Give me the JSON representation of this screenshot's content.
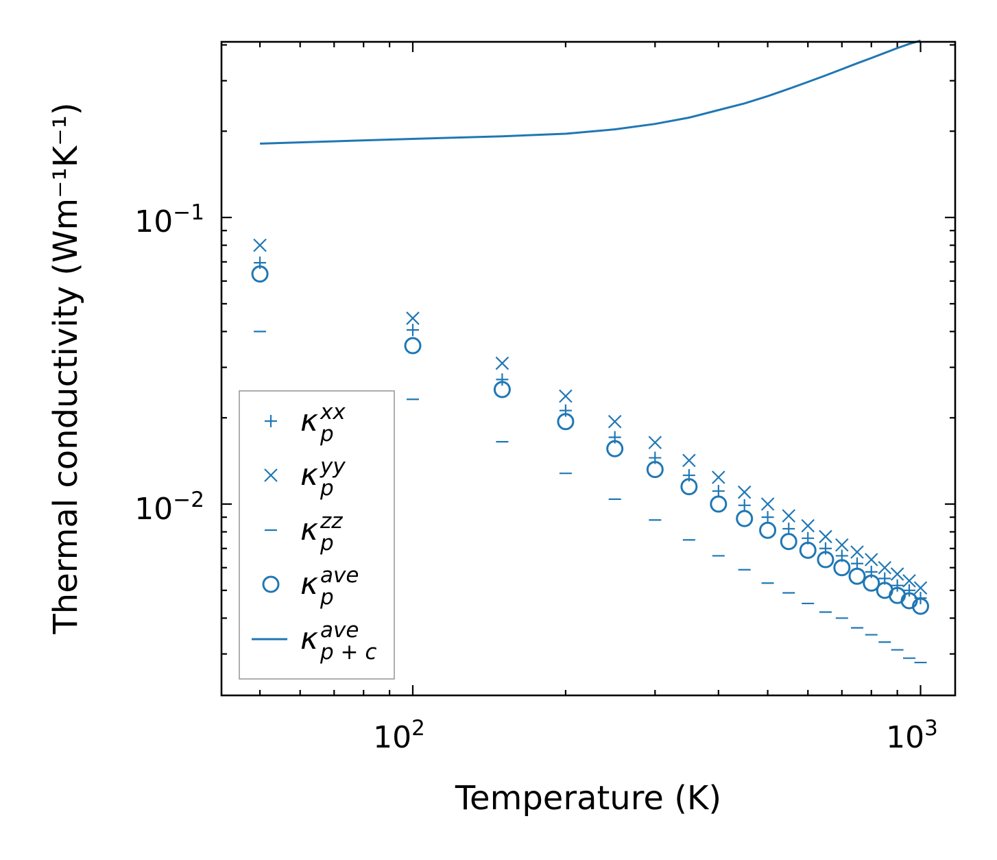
{
  "chart_data": {
    "type": "scatter",
    "xscale": "log",
    "yscale": "log",
    "xlabel": "Temperature (K)",
    "ylabel": "Thermal conductivity (Wm⁻¹K⁻¹)",
    "xlim": [
      42,
      1170
    ],
    "ylim": [
      0.00215,
      0.41
    ],
    "x_tick_labels": [
      {
        "value": 100,
        "base": "10",
        "exp": "2"
      },
      {
        "value": 1000,
        "base": "10",
        "exp": "3"
      }
    ],
    "y_tick_labels": [
      {
        "value": 0.1,
        "base": "10",
        "exp": "−1"
      },
      {
        "value": 0.01,
        "base": "10",
        "exp": "−2"
      }
    ],
    "legend_position": "lower-left",
    "color": "#1f77b4",
    "x": [
      50,
      100,
      150,
      200,
      250,
      300,
      350,
      400,
      450,
      500,
      550,
      600,
      650,
      700,
      750,
      800,
      850,
      900,
      950,
      1000
    ],
    "series": [
      {
        "name": "κ_p^xx",
        "label_main": "κ",
        "label_sub": "p",
        "label_sup": "xx",
        "marker": "plus",
        "values": [
          0.0695,
          0.0405,
          0.0272,
          0.0212,
          0.0171,
          0.0145,
          0.0126,
          0.0111,
          0.0099,
          0.009,
          0.0082,
          0.0076,
          0.007,
          0.0066,
          0.0062,
          0.0058,
          0.0055,
          0.0052,
          0.005,
          0.0047
        ]
      },
      {
        "name": "κ_p^yy",
        "label_main": "κ",
        "label_sub": "p",
        "label_sup": "yy",
        "marker": "x",
        "values": [
          0.08,
          0.0445,
          0.031,
          0.0238,
          0.0194,
          0.0164,
          0.0142,
          0.0124,
          0.011,
          0.01,
          0.0091,
          0.0084,
          0.0077,
          0.0072,
          0.0068,
          0.0064,
          0.006,
          0.0057,
          0.0054,
          0.0051
        ]
      },
      {
        "name": "κ_p^zz",
        "label_main": "κ",
        "label_sub": "p",
        "label_sup": "zz",
        "marker": "hline",
        "values": [
          0.04,
          0.0232,
          0.0165,
          0.0128,
          0.0104,
          0.0088,
          0.0075,
          0.0066,
          0.0059,
          0.0053,
          0.0049,
          0.0045,
          0.0042,
          0.004,
          0.0037,
          0.0035,
          0.0033,
          0.0031,
          0.0029,
          0.0028
        ]
      },
      {
        "name": "κ_p^ave",
        "label_main": "κ",
        "label_sub": "p",
        "label_sup": "ave",
        "marker": "circle",
        "values": [
          0.0635,
          0.0357,
          0.0251,
          0.0194,
          0.0156,
          0.0132,
          0.0115,
          0.01,
          0.0089,
          0.0081,
          0.0074,
          0.0069,
          0.0064,
          0.006,
          0.0056,
          0.0053,
          0.005,
          0.0048,
          0.0046,
          0.0044
        ]
      },
      {
        "name": "κ_p+c^ave",
        "label_main": "κ",
        "label_sub": "p + c",
        "label_sup": "ave",
        "marker": "line",
        "values": [
          0.181,
          0.188,
          0.192,
          0.196,
          0.203,
          0.212,
          0.223,
          0.237,
          0.25,
          0.265,
          0.281,
          0.297,
          0.313,
          0.329,
          0.345,
          0.36,
          0.375,
          0.39,
          0.403,
          0.414
        ]
      }
    ]
  }
}
